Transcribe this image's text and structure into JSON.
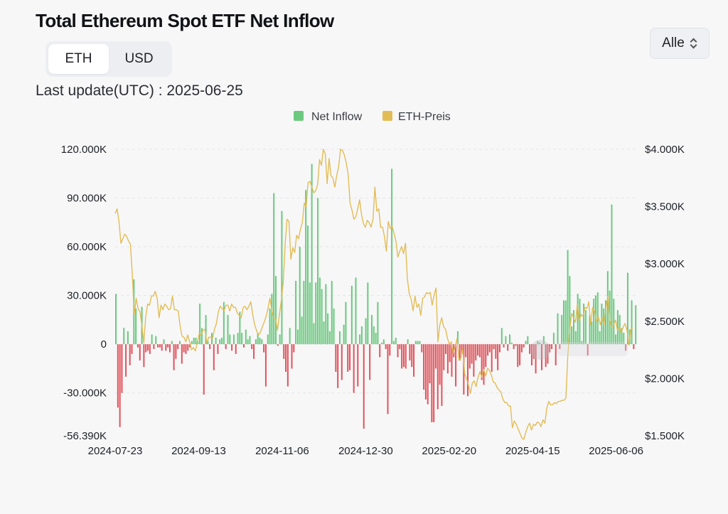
{
  "header": {
    "title": "Total Ethereum Spot ETF Net Inflow",
    "unit_tabs": [
      "ETH",
      "USD"
    ],
    "active_unit": "ETH",
    "range_select": "Alle",
    "last_update": "Last update(UTC) : 2025-06-25"
  },
  "colors": {
    "positive": "#6cc97f",
    "negative": "#e0555d",
    "price": "#e2bd55",
    "grid": "#e4e5e8"
  },
  "chart_data": {
    "type": "bar",
    "title": "Total Ethereum Spot ETF Net Inflow",
    "legend_position": "top-center",
    "grid": true,
    "series": [
      {
        "name": "Net Inflow",
        "type": "bar",
        "axis": "left"
      },
      {
        "name": "ETH-Preis",
        "type": "line",
        "axis": "right"
      }
    ],
    "x_tick_labels": [
      "2024-07-23",
      "2024-09-13",
      "2024-11-06",
      "2024-12-30",
      "2025-02-20",
      "2025-04-15",
      "2025-06-06"
    ],
    "y_left": {
      "ylim": [
        -56390,
        120000
      ],
      "tick_labels": [
        {
          "value": 120000,
          "label": "120.000K"
        },
        {
          "value": 90000,
          "label": "90.000K"
        },
        {
          "value": 60000,
          "label": "60.000K"
        },
        {
          "value": 30000,
          "label": "30.000K"
        },
        {
          "value": 0,
          "label": "0"
        },
        {
          "value": -30000,
          "label": "-30.000K"
        },
        {
          "value": -56390,
          "label": "-56.390K"
        }
      ]
    },
    "y_right": {
      "ylim": [
        1500,
        4000
      ],
      "tick_labels": [
        {
          "value": 4000,
          "label": "$4.000K"
        },
        {
          "value": 3500,
          "label": "$3.500K"
        },
        {
          "value": 3000,
          "label": "$3.000K"
        },
        {
          "value": 2500,
          "label": "$2.500K"
        },
        {
          "value": 2000,
          "label": "$2.000K"
        },
        {
          "value": 1500,
          "label": "$1.500K"
        }
      ]
    },
    "net_inflow": [
      31000,
      -39000,
      -51000,
      -30000,
      10000,
      -20000,
      8000,
      -13000,
      -6000,
      40000,
      22000,
      -2000,
      -10000,
      23000,
      -14000,
      -5000,
      -4000,
      -6000,
      6000,
      -3000,
      5000,
      -2000,
      -2000,
      -4000,
      3000,
      -4000,
      -2000,
      -5000,
      2000,
      -16000,
      -9000,
      -3000,
      2000,
      -12000,
      -5000,
      -6000,
      -4000,
      -2000,
      2000,
      4000,
      4000,
      2000,
      25000,
      10000,
      -31000,
      18000,
      2000,
      -3000,
      7000,
      -16000,
      4000,
      -6000,
      3000,
      4000,
      26000,
      -3000,
      18000,
      6000,
      -4000,
      6000,
      -6000,
      7000,
      20000,
      7000,
      -2000,
      9000,
      3000,
      5000,
      -3000,
      -9000,
      3000,
      7000,
      4000,
      3000,
      -5000,
      -26000,
      6000,
      22000,
      31000,
      93000,
      42000,
      -1000,
      6000,
      82000,
      -9000,
      -17000,
      -26000,
      10000,
      -15000,
      -5000,
      39000,
      9000,
      60000,
      17000,
      39000,
      95000,
      73000,
      38000,
      111000,
      13000,
      38000,
      90000,
      41000,
      34000,
      14000,
      37000,
      19000,
      8000,
      39000,
      22000,
      -17000,
      -27000,
      8000,
      -22000,
      12000,
      26000,
      -17000,
      -16000,
      36000,
      -30000,
      41000,
      -26000,
      6000,
      11000,
      -52000,
      16000,
      38000,
      -22000,
      18000,
      11000,
      7000,
      26000,
      -8000,
      1000,
      3000,
      -3000,
      -43000,
      -7000,
      108000,
      2000,
      4000,
      -8000,
      -3000,
      -15000,
      -14000,
      -15000,
      3000,
      -10000,
      -14000,
      -20000,
      2000,
      2000,
      2000,
      -5000,
      -28000,
      -34000,
      -37000,
      -24000,
      -48000,
      -48000,
      -15000,
      -40000,
      -25000,
      -38000,
      -16000,
      -6000,
      -18000,
      -11000,
      -20000,
      -8000,
      -26000,
      8000,
      -10000,
      -6000,
      -31000,
      -8000,
      -32000,
      -15000,
      -12000,
      -20000,
      -10000,
      -7000,
      -8000,
      -22000,
      -25000,
      -14000,
      -7000,
      -5000,
      -17000,
      -3000,
      -9000,
      -16000,
      -5000,
      10000,
      -2000,
      5000,
      -4000,
      6000,
      1000,
      -3000,
      -1000,
      -14000,
      -13000,
      -5000,
      -2000,
      2000,
      5000,
      -6000,
      -13000,
      -9000,
      -18000,
      2000,
      1000,
      -16000,
      5000,
      -14000,
      -12000,
      -5000,
      -3000,
      7000,
      -13000,
      19000,
      -3000,
      18000,
      27000,
      27000,
      58000,
      42000,
      11000,
      21000,
      8000,
      31000,
      28000,
      2000,
      25000,
      21000,
      -7000,
      18000,
      14000,
      28000,
      30000,
      32000,
      8000,
      25000,
      22000,
      27000,
      45000,
      33000,
      86000,
      28000,
      6000,
      21000,
      18000,
      10000,
      7000,
      -4000,
      44000,
      9000,
      27000,
      -3000,
      24000
    ],
    "eth_price": [
      3440,
      3480,
      3370,
      3180,
      3220,
      3260,
      3240,
      3200,
      3170,
      2900,
      2560,
      2700,
      2610,
      2580,
      2460,
      2310,
      2540,
      2650,
      2640,
      2720,
      2720,
      2760,
      2700,
      2530,
      2640,
      2600,
      2650,
      2630,
      2600,
      2610,
      2720,
      2600,
      2600,
      2590,
      2460,
      2370,
      2360,
      2320,
      2380,
      2320,
      2250,
      2270,
      2240,
      2310,
      2390,
      2380,
      2420,
      2430,
      2310,
      2360,
      2360,
      2350,
      2430,
      2480,
      2580,
      2630,
      2610,
      2590,
      2640,
      2640,
      2590,
      2650,
      2620,
      2620,
      2570,
      2550,
      2530,
      2620,
      2630,
      2600,
      2630,
      2670,
      2560,
      2470,
      2420,
      2380,
      2400,
      2450,
      2490,
      2540,
      2610,
      2700,
      2600,
      2530,
      2520,
      2420,
      2560,
      2680,
      2840,
      3170,
      3390,
      3370,
      3040,
      3140,
      3100,
      3250,
      3220,
      3300,
      3360,
      3530,
      3500,
      3710,
      3720,
      3670,
      3620,
      3640,
      3690,
      3910,
      3860,
      4000,
      3960,
      3700,
      3920,
      3770,
      3750,
      3670,
      3770,
      3850,
      4000,
      3990,
      3950,
      3880,
      3780,
      3530,
      3470,
      3390,
      3410,
      3480,
      3560,
      3430,
      3350,
      3320,
      3380,
      3360,
      3320,
      3390,
      3670,
      3460,
      3480,
      3320,
      3320,
      3240,
      3110,
      3370,
      3310,
      3330,
      3270,
      3200,
      3060,
      3110,
      3150,
      3090,
      3180,
      2870,
      2740,
      2690,
      2590,
      2720,
      2620,
      2650,
      2550,
      2700,
      2710,
      2750,
      2740,
      2750,
      2640,
      2730,
      2790,
      2320,
      2470,
      2530,
      2450,
      2430,
      2350,
      2300,
      2320,
      2220,
      2270,
      2350,
      2160,
      2180,
      2260,
      2040,
      2000,
      1940,
      1870,
      1960,
      1980,
      1930,
      2010,
      2060,
      2010,
      2080,
      2020,
      2090,
      2070,
      2030,
      1970,
      1960,
      1920,
      1900,
      1880,
      1820,
      1790,
      1790,
      1760,
      1760,
      1570,
      1630,
      1600,
      1560,
      1520,
      1480,
      1470,
      1530,
      1580,
      1610,
      1550,
      1600,
      1590,
      1620,
      1610,
      1580,
      1640,
      1610,
      1740,
      1800,
      1770,
      1770,
      1790,
      1780,
      1800,
      1800,
      1810,
      1810,
      1830,
      2200,
      2420,
      2570,
      2530,
      2490,
      2650,
      2500,
      2560,
      2540,
      2620,
      2610,
      2670,
      2470,
      2620,
      2590,
      2500,
      2540,
      2470,
      2530,
      2470,
      2620,
      2720,
      2510,
      2450,
      2470,
      2510,
      2420,
      2450,
      2400,
      2450,
      2480,
      2420,
      2290,
      2430,
      2440
    ]
  }
}
